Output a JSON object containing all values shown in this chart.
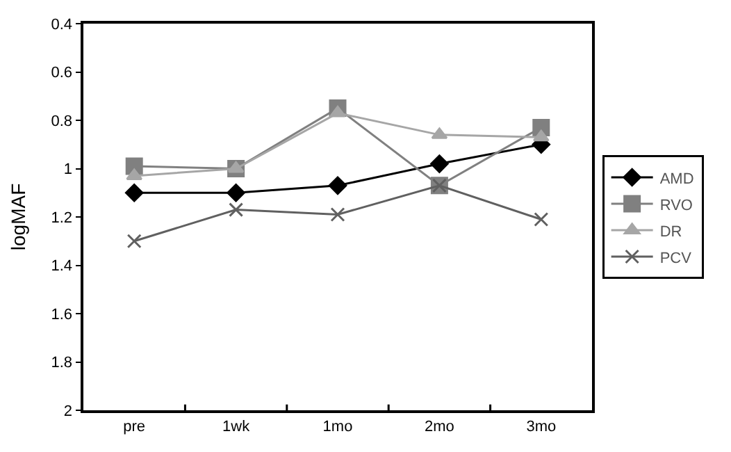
{
  "chart_data": {
    "type": "line",
    "ylabel": "logMAF",
    "categories": [
      "pre",
      "1wk",
      "1mo",
      "2mo",
      "3mo"
    ],
    "ylim": [
      2,
      0.4
    ],
    "yticks": [
      0.4,
      0.6,
      0.8,
      1,
      1.2,
      1.4,
      1.6,
      1.8,
      2
    ],
    "legend": "right",
    "series": [
      {
        "name": "AMD",
        "color": "#000000",
        "marker": "diamond",
        "values": [
          1.1,
          1.1,
          1.07,
          0.98,
          0.9
        ]
      },
      {
        "name": "RVO",
        "color": "#808080",
        "marker": "square",
        "values": [
          0.99,
          1.0,
          0.75,
          1.07,
          0.83
        ]
      },
      {
        "name": "DR",
        "color": "#a6a6a6",
        "marker": "triangle",
        "values": [
          1.03,
          1.0,
          0.77,
          0.86,
          0.87
        ]
      },
      {
        "name": "PCV",
        "color": "#606060",
        "marker": "cross",
        "values": [
          1.3,
          1.17,
          1.19,
          1.07,
          1.21
        ]
      }
    ]
  }
}
